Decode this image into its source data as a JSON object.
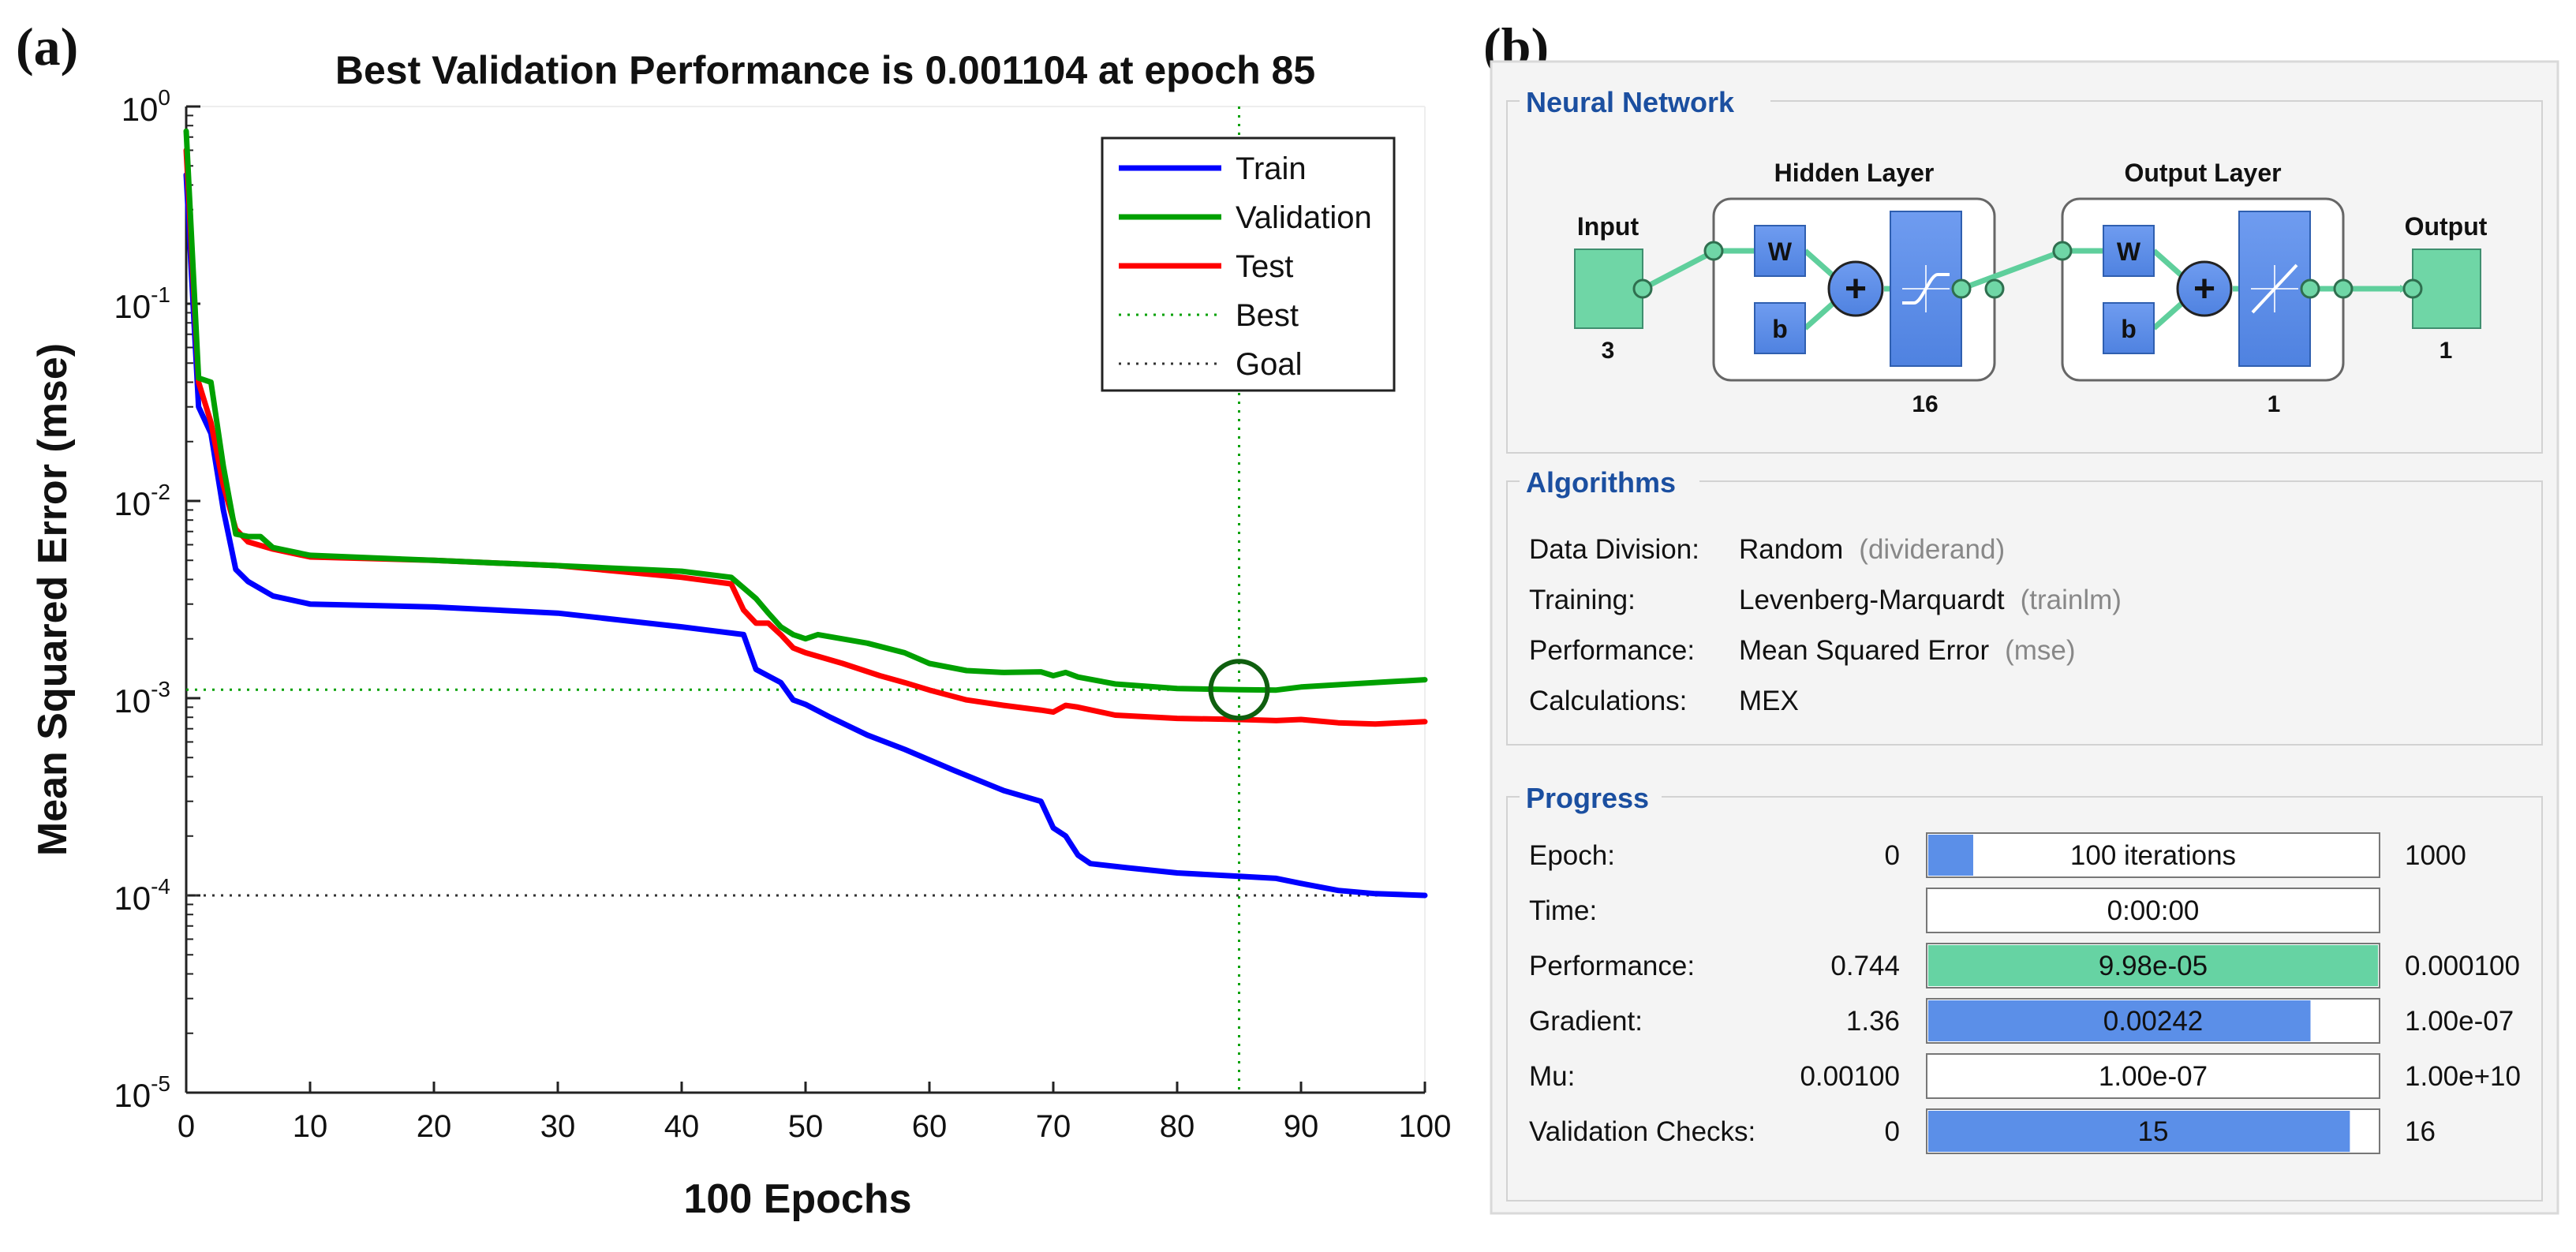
{
  "panels": {
    "a_label": "(a)",
    "b_label": "(b)"
  },
  "chart_data": {
    "type": "line",
    "title": "Best Validation Performance is 0.001104 at epoch 85",
    "xlabel": "100 Epochs",
    "ylabel": "Mean Squared Error  (mse)",
    "yscale": "log",
    "xlim": [
      0,
      100
    ],
    "ylim": [
      1e-05,
      1
    ],
    "x_ticks": [
      "0",
      "10",
      "20",
      "30",
      "40",
      "50",
      "60",
      "70",
      "80",
      "90",
      "100"
    ],
    "y_ticks": [
      {
        "base": "10",
        "exp": "0",
        "value": 1
      },
      {
        "base": "10",
        "exp": "-1",
        "value": 0.1
      },
      {
        "base": "10",
        "exp": "-2",
        "value": 0.01
      },
      {
        "base": "10",
        "exp": "-3",
        "value": 0.001
      },
      {
        "base": "10",
        "exp": "-4",
        "value": 0.0001
      },
      {
        "base": "10",
        "exp": "-5",
        "value": 1e-05
      }
    ],
    "grid": false,
    "legend_position": "top-right",
    "series": [
      {
        "name": "Train",
        "color": "#0000ff",
        "style": "solid",
        "points": [
          [
            0,
            0.45
          ],
          [
            1,
            0.03
          ],
          [
            2,
            0.022
          ],
          [
            3,
            0.009
          ],
          [
            4,
            0.0045
          ],
          [
            5,
            0.0039
          ],
          [
            7,
            0.0033
          ],
          [
            10,
            0.003
          ],
          [
            20,
            0.0029
          ],
          [
            30,
            0.0027
          ],
          [
            40,
            0.0023
          ],
          [
            45,
            0.0021
          ],
          [
            46,
            0.0014
          ],
          [
            48,
            0.0012
          ],
          [
            49,
            0.00098
          ],
          [
            50,
            0.00093
          ],
          [
            52,
            0.0008
          ],
          [
            55,
            0.00065
          ],
          [
            58,
            0.00055
          ],
          [
            62,
            0.00043
          ],
          [
            66,
            0.00034
          ],
          [
            69,
            0.0003
          ],
          [
            70,
            0.00022
          ],
          [
            71,
            0.0002
          ],
          [
            72,
            0.00016
          ],
          [
            73,
            0.000145
          ],
          [
            76,
            0.000138
          ],
          [
            80,
            0.00013
          ],
          [
            85,
            0.000125
          ],
          [
            88,
            0.000122
          ],
          [
            90,
            0.000115
          ],
          [
            93,
            0.000106
          ],
          [
            96,
            0.000102
          ],
          [
            100,
            0.0001
          ]
        ]
      },
      {
        "name": "Validation",
        "color": "#00a000",
        "style": "solid",
        "points": [
          [
            0,
            0.75
          ],
          [
            1,
            0.042
          ],
          [
            2,
            0.04
          ],
          [
            3,
            0.015
          ],
          [
            4,
            0.0068
          ],
          [
            5,
            0.0066
          ],
          [
            6,
            0.0066
          ],
          [
            7,
            0.0058
          ],
          [
            10,
            0.0053
          ],
          [
            20,
            0.005
          ],
          [
            30,
            0.0047
          ],
          [
            40,
            0.0044
          ],
          [
            44,
            0.0041
          ],
          [
            46,
            0.0032
          ],
          [
            47,
            0.0027
          ],
          [
            48,
            0.0023
          ],
          [
            49,
            0.0021
          ],
          [
            50,
            0.002
          ],
          [
            51,
            0.0021
          ],
          [
            55,
            0.0019
          ],
          [
            58,
            0.0017
          ],
          [
            60,
            0.0015
          ],
          [
            63,
            0.00138
          ],
          [
            66,
            0.00135
          ],
          [
            69,
            0.00136
          ],
          [
            70,
            0.0013
          ],
          [
            71,
            0.00135
          ],
          [
            72,
            0.00128
          ],
          [
            75,
            0.00118
          ],
          [
            80,
            0.00112
          ],
          [
            85,
            0.001104
          ],
          [
            88,
            0.0011
          ],
          [
            90,
            0.00114
          ],
          [
            94,
            0.00118
          ],
          [
            97,
            0.00121
          ],
          [
            100,
            0.00124
          ]
        ]
      },
      {
        "name": "Test",
        "color": "#ff0000",
        "style": "solid",
        "points": [
          [
            0,
            0.6
          ],
          [
            1,
            0.04
          ],
          [
            2,
            0.025
          ],
          [
            3,
            0.012
          ],
          [
            4,
            0.0072
          ],
          [
            5,
            0.0062
          ],
          [
            7,
            0.0057
          ],
          [
            10,
            0.0052
          ],
          [
            20,
            0.005
          ],
          [
            30,
            0.0047
          ],
          [
            40,
            0.0041
          ],
          [
            44,
            0.0038
          ],
          [
            45,
            0.0028
          ],
          [
            46,
            0.0024
          ],
          [
            47,
            0.0024
          ],
          [
            48,
            0.0021
          ],
          [
            49,
            0.0018
          ],
          [
            50,
            0.0017
          ],
          [
            53,
            0.0015
          ],
          [
            56,
            0.0013
          ],
          [
            58,
            0.0012
          ],
          [
            60,
            0.0011
          ],
          [
            63,
            0.00098
          ],
          [
            66,
            0.00092
          ],
          [
            69,
            0.00087
          ],
          [
            70,
            0.00085
          ],
          [
            71,
            0.00092
          ],
          [
            72,
            0.0009
          ],
          [
            75,
            0.00082
          ],
          [
            80,
            0.00079
          ],
          [
            85,
            0.00078
          ],
          [
            88,
            0.00077
          ],
          [
            90,
            0.00078
          ],
          [
            93,
            0.00075
          ],
          [
            96,
            0.00074
          ],
          [
            100,
            0.00076
          ]
        ]
      }
    ],
    "best": {
      "name": "Best",
      "epoch": 85,
      "value": 0.001104,
      "color": "#00a000",
      "style": "dotted"
    },
    "goal": {
      "name": "Goal",
      "value": 0.0001,
      "color": "#333333",
      "style": "dotted"
    }
  },
  "nntool": {
    "network": {
      "title": "Neural Network",
      "input_label": "Input",
      "input_size": "3",
      "hidden_title": "Hidden Layer",
      "hidden_size": "16",
      "output_layer_title": "Output Layer",
      "output_layer_size": "1",
      "output_label": "Output",
      "output_size": "1",
      "w_label": "W",
      "b_label": "b",
      "sum_glyph": "+"
    },
    "algorithms": {
      "title": "Algorithms",
      "rows": [
        {
          "label": "Data Division:",
          "value": "Random",
          "note": "(dividerand)"
        },
        {
          "label": "Training:",
          "value": "Levenberg-Marquardt",
          "note": "(trainlm)"
        },
        {
          "label": "Performance:",
          "value": "Mean Squared Error",
          "note": "(mse)"
        },
        {
          "label": "Calculations:",
          "value": "MEX",
          "note": ""
        }
      ]
    },
    "progress": {
      "title": "Progress",
      "rows": [
        {
          "label": "Epoch:",
          "start": "0",
          "bar_text": "100 iterations",
          "end": "1000",
          "fill": 0.1,
          "color": "#5b8fe8"
        },
        {
          "label": "Time:",
          "start": "",
          "bar_text": "0:00:00",
          "end": "",
          "fill": 0,
          "color": "#5b8fe8"
        },
        {
          "label": "Performance:",
          "start": "0.744",
          "bar_text": "9.98e-05",
          "end": "0.000100",
          "fill": 1.0,
          "color": "#66d3a3"
        },
        {
          "label": "Gradient:",
          "start": "1.36",
          "bar_text": "0.00242",
          "end": "1.00e-07",
          "fill": 0.85,
          "color": "#5b8fe8"
        },
        {
          "label": "Mu:",
          "start": "0.00100",
          "bar_text": "1.00e-07",
          "end": "1.00e+10",
          "fill": 0,
          "color": "#5b8fe8"
        },
        {
          "label": "Validation Checks:",
          "start": "0",
          "bar_text": "15",
          "end": "16",
          "fill": 0.9375,
          "color": "#5b8fe8"
        }
      ]
    }
  }
}
